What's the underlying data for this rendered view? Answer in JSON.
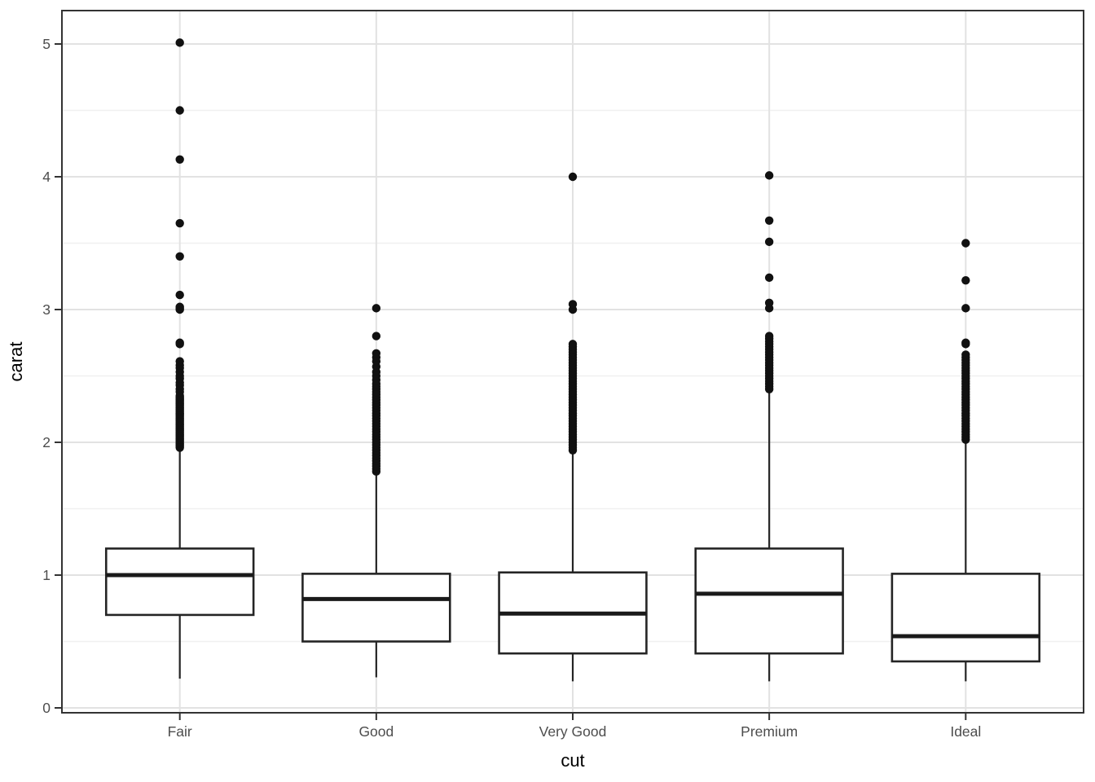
{
  "figure": {
    "title": "",
    "x_axis_title": "cut",
    "y_axis_title": "carat",
    "y_tick_labels": [
      "0",
      "1",
      "2",
      "3",
      "4",
      "5"
    ],
    "x_tick_labels": [
      "Fair",
      "Good",
      "Very Good",
      "Premium",
      "Ideal"
    ]
  },
  "chart_data": {
    "type": "boxplot",
    "title": "",
    "xlabel": "cut",
    "ylabel": "carat",
    "categories": [
      "Fair",
      "Good",
      "Very Good",
      "Premium",
      "Ideal"
    ],
    "ylim": [
      -0.04,
      5.25
    ],
    "y_major_ticks": [
      0,
      1,
      2,
      3,
      4,
      5
    ],
    "y_minor_ticks": [
      0.5,
      1.5,
      2.5,
      3.5,
      4.5
    ],
    "grid": {
      "horizontal_major": true,
      "horizontal_minor": true,
      "vertical_major_at_categories": true
    },
    "legend": "none",
    "boxes": [
      {
        "category": "Fair",
        "whisker_low": 0.22,
        "q1": 0.7,
        "median": 1.0,
        "q3": 1.2,
        "whisker_high": 1.95,
        "outliers": [
          1.96,
          1.97,
          1.98,
          1.99,
          2.0,
          2.01,
          2.02,
          2.03,
          2.04,
          2.05,
          2.06,
          2.07,
          2.08,
          2.09,
          2.1,
          2.11,
          2.12,
          2.13,
          2.14,
          2.15,
          2.16,
          2.17,
          2.18,
          2.19,
          2.2,
          2.21,
          2.22,
          2.23,
          2.24,
          2.25,
          2.26,
          2.27,
          2.28,
          2.29,
          2.3,
          2.31,
          2.32,
          2.33,
          2.34,
          2.35,
          2.38,
          2.4,
          2.43,
          2.45,
          2.48,
          2.5,
          2.53,
          2.56,
          2.58,
          2.61,
          2.74,
          2.75,
          3.0,
          3.01,
          3.02,
          3.11,
          3.4,
          3.65,
          4.13,
          4.5,
          5.01
        ]
      },
      {
        "category": "Good",
        "whisker_low": 0.23,
        "q1": 0.5,
        "median": 0.82,
        "q3": 1.01,
        "whisker_high": 1.76,
        "outliers": [
          1.78,
          1.8,
          1.82,
          1.84,
          1.86,
          1.88,
          1.9,
          1.92,
          1.94,
          1.96,
          1.98,
          2.0,
          2.02,
          2.04,
          2.06,
          2.08,
          2.1,
          2.12,
          2.14,
          2.16,
          2.18,
          2.2,
          2.22,
          2.24,
          2.26,
          2.28,
          2.3,
          2.32,
          2.34,
          2.36,
          2.38,
          2.4,
          2.42,
          2.44,
          2.47,
          2.5,
          2.53,
          2.57,
          2.61,
          2.64,
          2.67,
          2.8,
          3.01
        ]
      },
      {
        "category": "Very Good",
        "whisker_low": 0.2,
        "q1": 0.41,
        "median": 0.71,
        "q3": 1.02,
        "whisker_high": 1.92,
        "outliers": [
          1.94,
          1.96,
          1.98,
          2.0,
          2.02,
          2.04,
          2.06,
          2.08,
          2.1,
          2.12,
          2.14,
          2.16,
          2.18,
          2.2,
          2.22,
          2.24,
          2.26,
          2.28,
          2.3,
          2.32,
          2.34,
          2.36,
          2.38,
          2.4,
          2.42,
          2.44,
          2.46,
          2.48,
          2.5,
          2.52,
          2.54,
          2.56,
          2.58,
          2.6,
          2.62,
          2.64,
          2.66,
          2.68,
          2.7,
          2.72,
          2.74,
          3.0,
          3.04,
          4.0
        ]
      },
      {
        "category": "Premium",
        "whisker_low": 0.2,
        "q1": 0.41,
        "median": 0.86,
        "q3": 1.2,
        "whisker_high": 2.38,
        "outliers": [
          2.4,
          2.42,
          2.44,
          2.46,
          2.48,
          2.5,
          2.52,
          2.54,
          2.56,
          2.58,
          2.6,
          2.62,
          2.64,
          2.66,
          2.68,
          2.7,
          2.72,
          2.74,
          2.76,
          2.78,
          2.8,
          3.01,
          3.05,
          3.24,
          3.51,
          3.67,
          4.01
        ]
      },
      {
        "category": "Ideal",
        "whisker_low": 0.2,
        "q1": 0.35,
        "median": 0.54,
        "q3": 1.01,
        "whisker_high": 2.0,
        "outliers": [
          2.02,
          2.04,
          2.06,
          2.08,
          2.1,
          2.12,
          2.14,
          2.16,
          2.18,
          2.2,
          2.22,
          2.24,
          2.26,
          2.28,
          2.3,
          2.32,
          2.34,
          2.36,
          2.38,
          2.4,
          2.42,
          2.44,
          2.46,
          2.48,
          2.5,
          2.52,
          2.54,
          2.56,
          2.58,
          2.6,
          2.62,
          2.64,
          2.66,
          2.74,
          2.75,
          3.01,
          3.22,
          3.5
        ]
      }
    ],
    "colors": {
      "panel_background": "#ffffff",
      "panel_border": "#333333",
      "grid_major": "#e2e2e2",
      "grid_minor": "#f0f0f0",
      "box_stroke": "#252525",
      "box_fill": "#ffffff",
      "median": "#1a1a1a",
      "outlier": "#111111",
      "tick_mark": "#333333",
      "tick_label": "#4d4d4d",
      "axis_title": "#000000"
    }
  }
}
